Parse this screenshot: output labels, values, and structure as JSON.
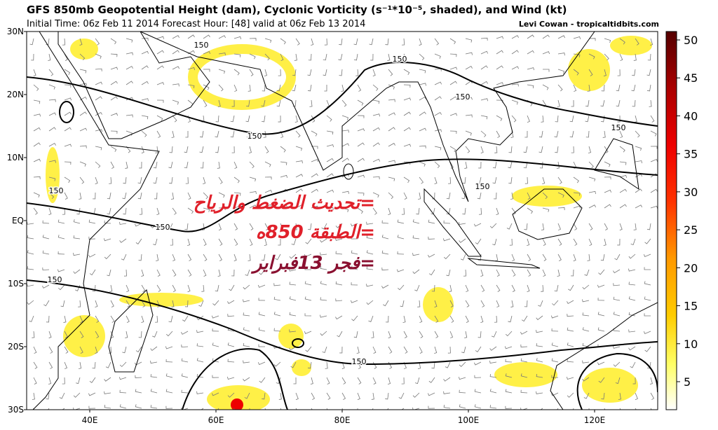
{
  "header": {
    "title": "GFS 850mb Geopotential Height (dam), Cyclonic Vorticity (s⁻¹*10⁻⁵, shaded), and Wind (kt)",
    "subtitle": "Initial Time: 06z Feb 11 2014 Forecast Hour: [48] valid at 06z Feb 13 2014",
    "credit": "Levi Cowan - tropicaltidbits.com"
  },
  "map": {
    "lat_labels": [
      "30N",
      "20N",
      "10N",
      "EQ",
      "10S",
      "20S",
      "30S"
    ],
    "lon_labels": [
      "40E",
      "60E",
      "80E",
      "100E",
      "120E"
    ],
    "contour_labels": [
      "150",
      "150",
      "150",
      "150",
      "150",
      "150",
      "150",
      "150",
      "150",
      "150"
    ]
  },
  "colorbar": {
    "ticks": [
      5,
      10,
      15,
      20,
      25,
      30,
      35,
      40,
      45,
      50
    ]
  },
  "overlay": {
    "lines": [
      "=تحديث الضغط والرياح",
      "=الطبقة 850ه",
      "=فجر 13فبراير"
    ]
  }
}
